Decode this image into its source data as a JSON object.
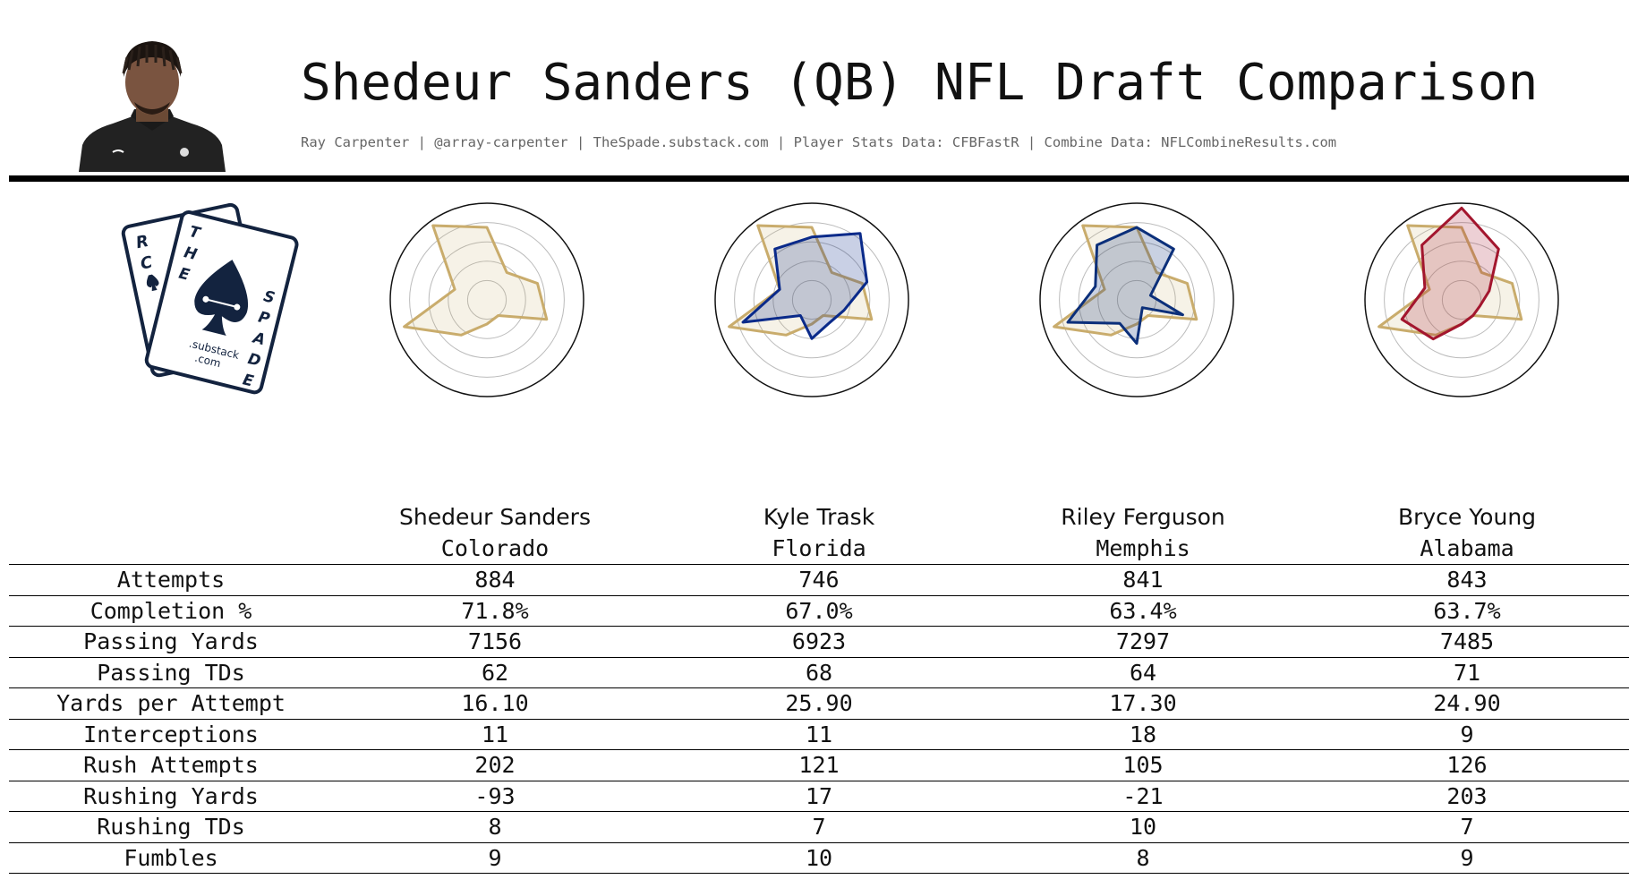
{
  "header": {
    "title": "Shedeur Sanders (QB) NFL Draft Comparison",
    "subtitle": "Ray Carpenter | @array-carpenter | TheSpade.substack.com | Player Stats Data: CFBFastR | Combine Data: NFLCombineResults.com"
  },
  "logo": {
    "domain_text_1": ".substack",
    "domain_text_2": ".com",
    "letters_back": "RC",
    "letters_front_1": "THE",
    "letters_front_2": "SPADE"
  },
  "colors": {
    "sanders": "#c9ac6c",
    "trask": "#0a2a8a",
    "ferguson": "#0b2f7a",
    "young": "#a3162e"
  },
  "chart_data": {
    "type": "table",
    "columns": [
      "",
      "Shedeur Sanders",
      "Kyle Trask",
      "Riley Ferguson",
      "Bryce Young"
    ],
    "players": [
      {
        "name": "Shedeur Sanders",
        "school": "Colorado"
      },
      {
        "name": "Kyle Trask",
        "school": "Florida"
      },
      {
        "name": "Riley Ferguson",
        "school": "Memphis"
      },
      {
        "name": "Bryce Young",
        "school": "Alabama"
      }
    ],
    "rows": [
      {
        "stat": "Attempts",
        "values": [
          "884",
          "746",
          "841",
          "843"
        ]
      },
      {
        "stat": "Completion %",
        "values": [
          "71.8%",
          "67.0%",
          "63.4%",
          "63.7%"
        ]
      },
      {
        "stat": "Passing Yards",
        "values": [
          "7156",
          "6923",
          "7297",
          "7485"
        ]
      },
      {
        "stat": "Passing TDs",
        "values": [
          "62",
          "68",
          "64",
          "71"
        ]
      },
      {
        "stat": "Yards per Attempt",
        "values": [
          "16.10",
          "25.90",
          "17.30",
          "24.90"
        ]
      },
      {
        "stat": "Interceptions",
        "values": [
          "11",
          "11",
          "18",
          "9"
        ]
      },
      {
        "stat": "Rush Attempts",
        "values": [
          "202",
          "121",
          "105",
          "126"
        ]
      },
      {
        "stat": "Rushing Yards",
        "values": [
          "-93",
          "17",
          "-21",
          "203"
        ]
      },
      {
        "stat": "Rushing TDs",
        "values": [
          "8",
          "7",
          "10",
          "7"
        ]
      },
      {
        "stat": "Fumbles",
        "values": [
          "9",
          "10",
          "8",
          "9"
        ]
      }
    ],
    "radar": {
      "type": "radar",
      "axes_count": 10,
      "rmax": 1.0,
      "rings": [
        0.2,
        0.4,
        0.6,
        0.8
      ],
      "series": [
        {
          "name": "Shedeur Sanders",
          "values": [
            0.75,
            0.35,
            0.55,
            0.65,
            0.2,
            0.25,
            0.45,
            0.9,
            0.35,
            0.95
          ]
        },
        {
          "name": "Kyle Trask",
          "values": [
            0.65,
            0.85,
            0.6,
            0.35,
            0.3,
            0.4,
            0.2,
            0.75,
            0.35,
            0.65
          ]
        },
        {
          "name": "Riley Ferguson",
          "values": [
            0.75,
            0.65,
            0.15,
            0.5,
            0.1,
            0.45,
            0.3,
            0.75,
            0.45,
            0.7
          ]
        },
        {
          "name": "Bryce Young",
          "values": [
            0.95,
            0.65,
            0.3,
            0.2,
            0.2,
            0.25,
            0.5,
            0.65,
            0.4,
            0.7
          ]
        }
      ]
    }
  }
}
